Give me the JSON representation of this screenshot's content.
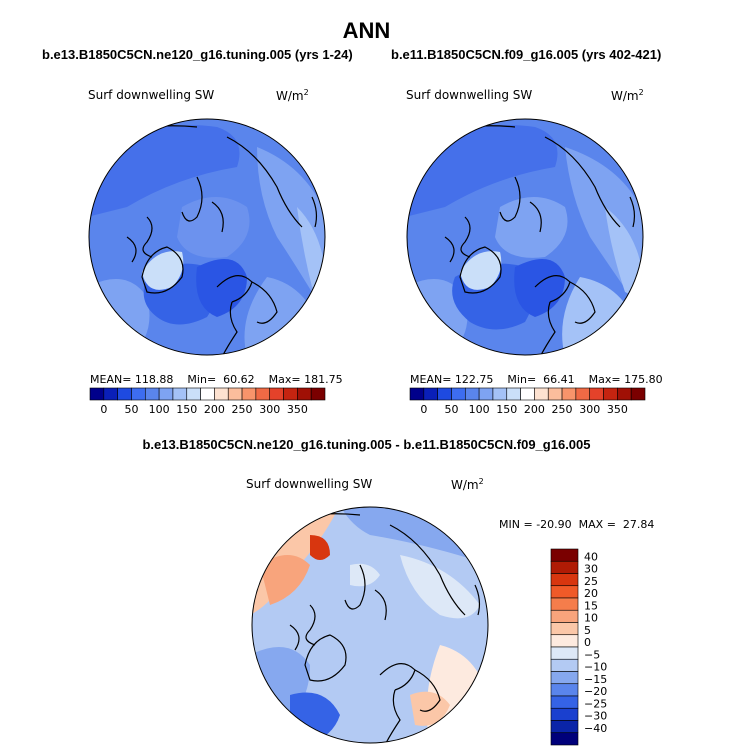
{
  "title": "ANN",
  "panels": [
    {
      "case": "b.e13.B1850C5CN.ne120_g16.tuning.005 (yrs 1-24)",
      "variable": "Surf downwelling SW",
      "units": "W/m",
      "units_sup": "2",
      "stats": {
        "mean_label": "MEAN=",
        "mean": "118.88",
        "min_label": "Min=",
        "min": "60.62",
        "max_label": "Max=",
        "max": "181.75"
      }
    },
    {
      "case": "b.e11.B1850C5CN.f09_g16.005 (yrs 402-421)",
      "variable": "Surf downwelling SW",
      "units": "W/m",
      "units_sup": "2",
      "stats": {
        "mean_label": "MEAN=",
        "mean": "122.75",
        "min_label": "Min=",
        "min": "66.41",
        "max_label": "Max=",
        "max": "175.80"
      }
    }
  ],
  "diff": {
    "case": "b.e13.B1850C5CN.ne120_g16.tuning.005 - b.e11.B1850C5CN.f09_g16.005",
    "variable": "Surf downwelling SW",
    "units": "W/m",
    "units_sup": "2",
    "stats": {
      "min_label": "MIN =",
      "min": "-20.90",
      "max_label": "MAX =",
      "max": "27.84"
    }
  },
  "chart_data": [
    {
      "type": "heatmap",
      "projection": "north polar stereographic",
      "variable": "Surf downwelling SW",
      "units": "W/m2",
      "mean": 118.88,
      "min": 60.62,
      "max": 181.75,
      "colorbar_ticks": [
        0,
        50,
        100,
        150,
        200,
        250,
        300,
        350
      ],
      "colorbar_colors": [
        "#00008b",
        "#0a1fb8",
        "#1e4ae0",
        "#3d6df0",
        "#5a85ec",
        "#7ea3f2",
        "#a4c2f7",
        "#cadff9",
        "#ffffff",
        "#fde2d0",
        "#fbbd9c",
        "#f8946b",
        "#f06a45",
        "#e4422a",
        "#c52410",
        "#a01005",
        "#7a0000"
      ]
    },
    {
      "type": "heatmap",
      "projection": "north polar stereographic",
      "variable": "Surf downwelling SW",
      "units": "W/m2",
      "mean": 122.75,
      "min": 66.41,
      "max": 175.8,
      "colorbar_ticks": [
        0,
        50,
        100,
        150,
        200,
        250,
        300,
        350
      ],
      "colorbar_colors": [
        "#00008b",
        "#0a1fb8",
        "#1e4ae0",
        "#3d6df0",
        "#5a85ec",
        "#7ea3f2",
        "#a4c2f7",
        "#cadff9",
        "#ffffff",
        "#fde2d0",
        "#fbbd9c",
        "#f8946b",
        "#f06a45",
        "#e4422a",
        "#c52410",
        "#a01005",
        "#7a0000"
      ]
    },
    {
      "type": "heatmap",
      "projection": "north polar stereographic",
      "variable": "Surf downwelling SW",
      "units": "W/m2",
      "min": -20.9,
      "max": 27.84,
      "colorbar_levels": [
        "40",
        "30",
        "25",
        "20",
        "15",
        "10",
        "5",
        "0",
        "−5",
        "−10",
        "−15",
        "−20",
        "−25",
        "−30",
        "−40"
      ],
      "colorbar_colors": [
        "#7a0000",
        "#b01b05",
        "#d8360f",
        "#f05a28",
        "#f57d4b",
        "#f8a47c",
        "#fbc7a8",
        "#fdeadf",
        "#dde8f7",
        "#b3caf3",
        "#86a8ef",
        "#5a85ec",
        "#3563e6",
        "#1a40cf",
        "#0a24a8",
        "#00007a"
      ]
    }
  ]
}
